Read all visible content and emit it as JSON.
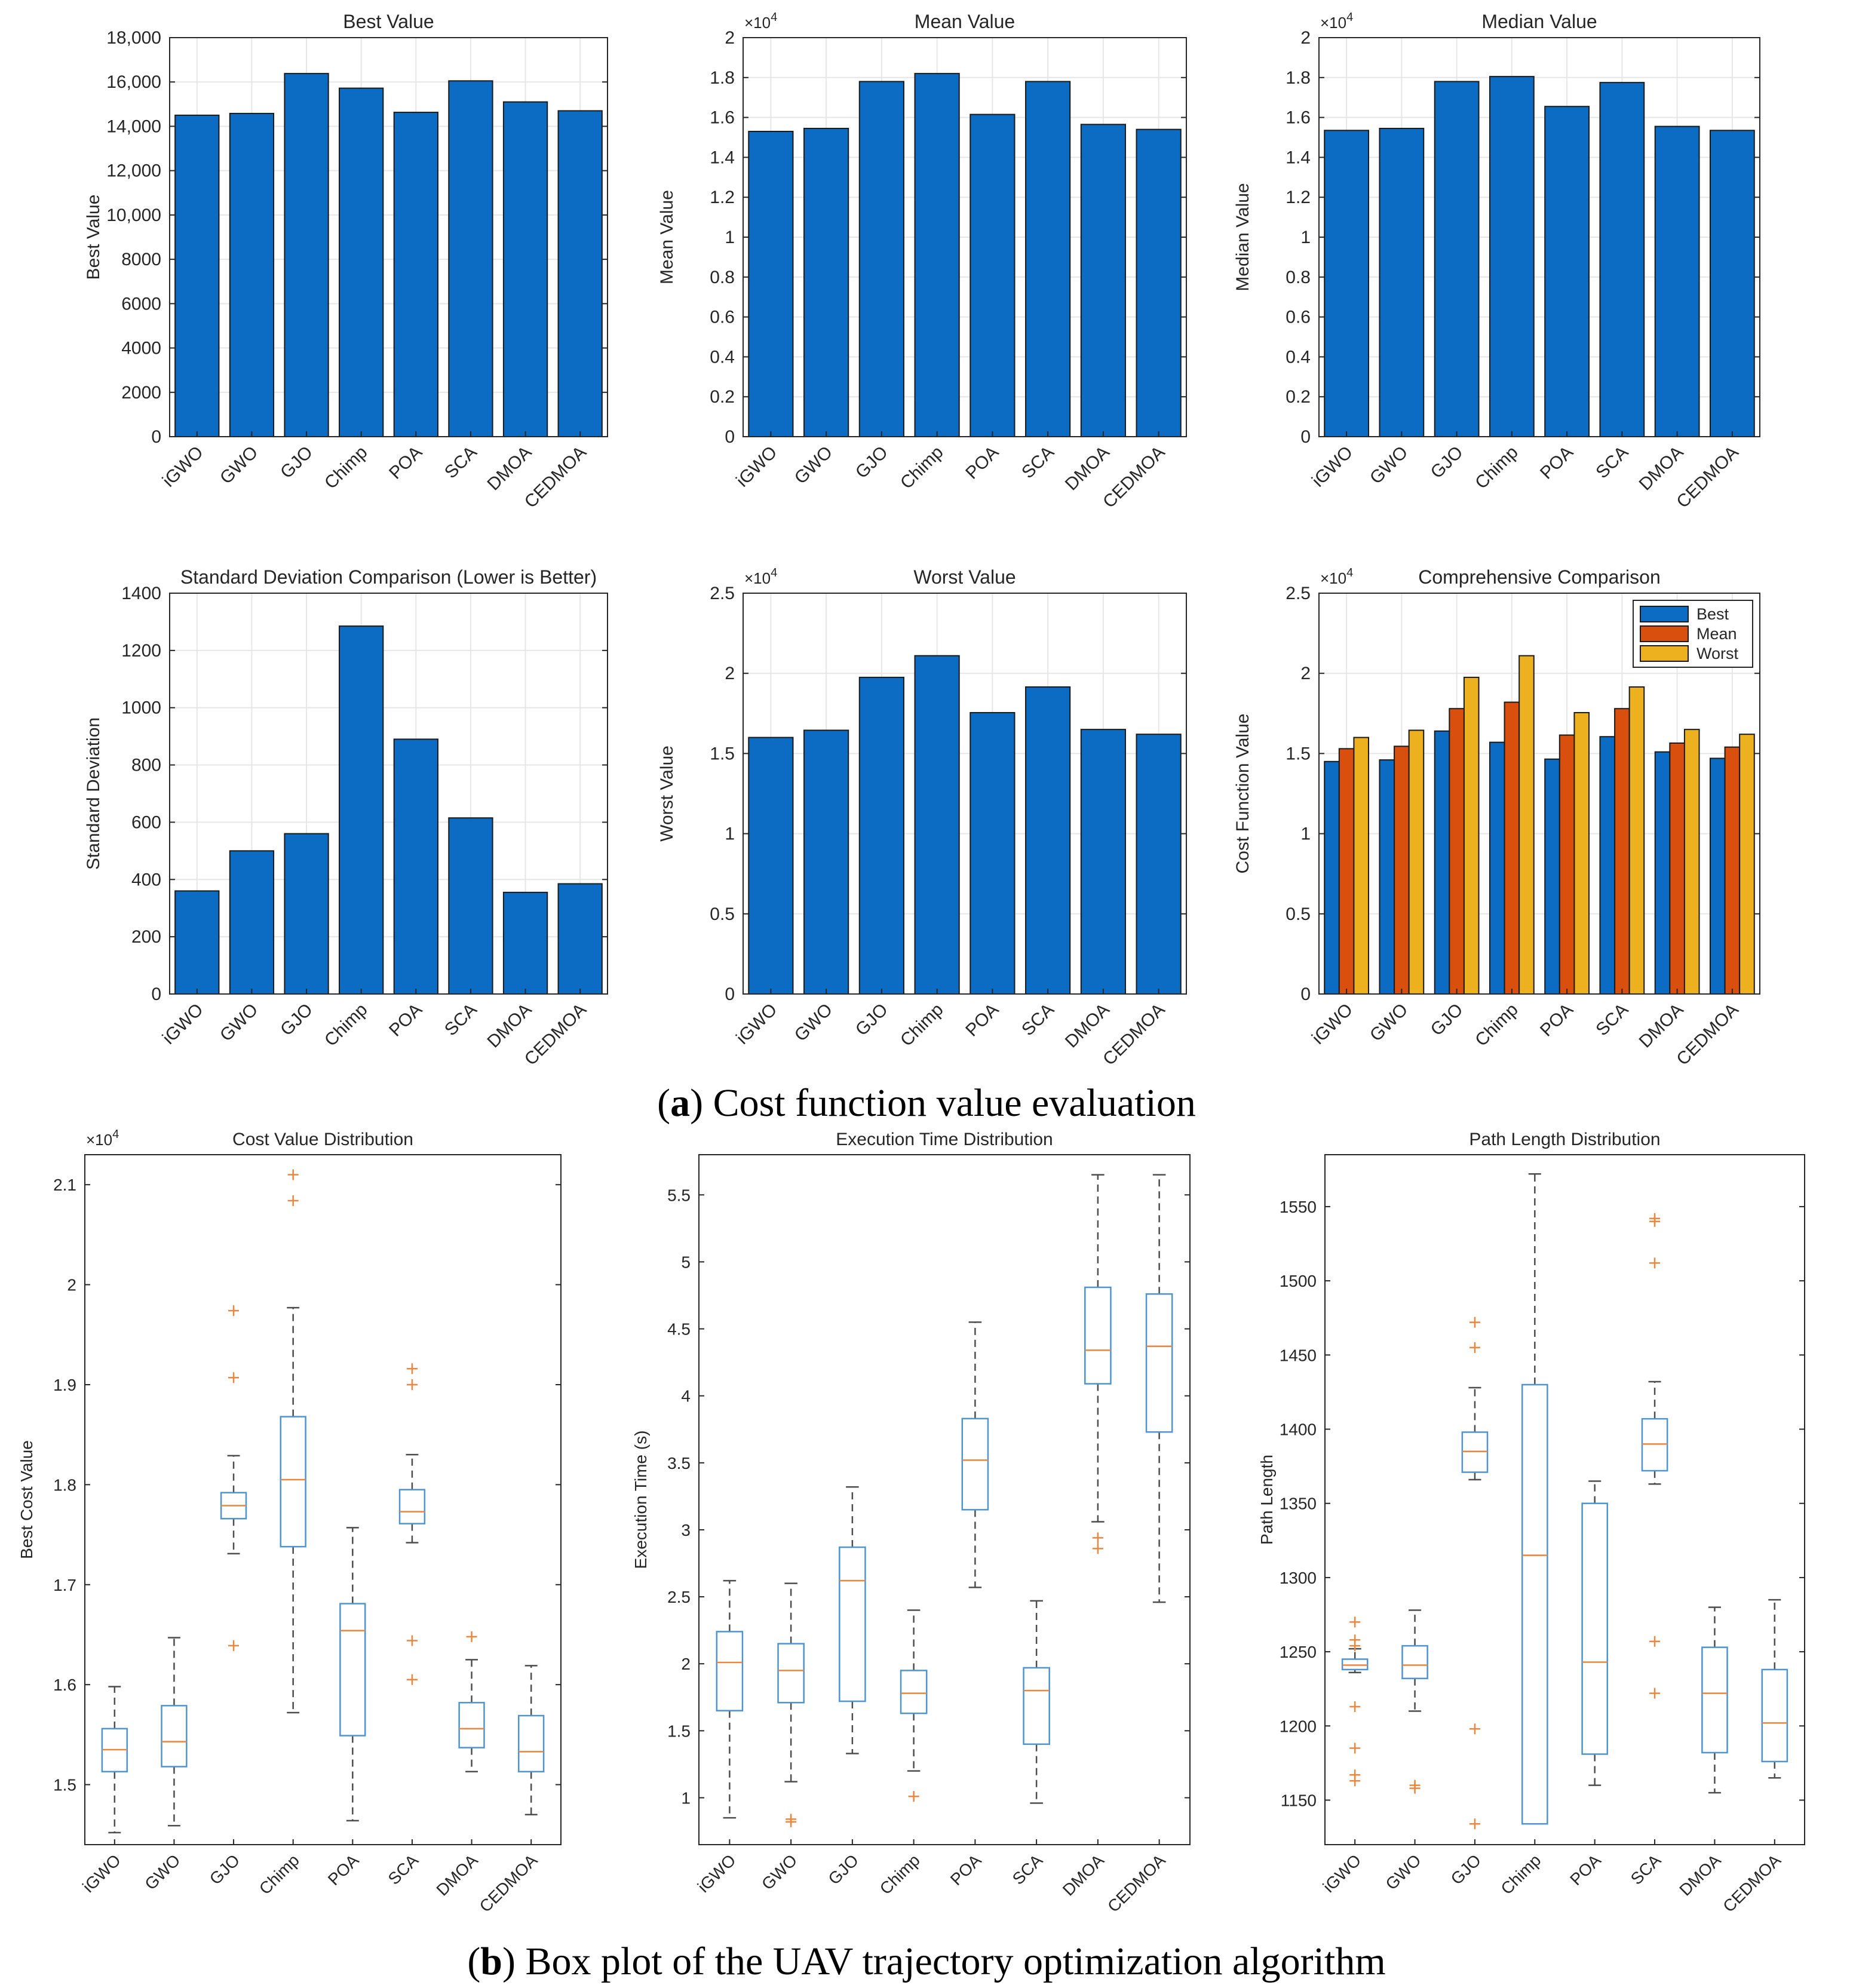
{
  "captions": {
    "a_label": "a",
    "a_text": "Cost function value evaluation",
    "b_label": "b",
    "b_text": "Box plot of the UAV trajectory optimization algorithm"
  },
  "colors": {
    "bar_blue": "#0C6CC3",
    "bar_orange": "#D94F0E",
    "bar_yellow": "#EDB120",
    "box_blue": "#4E94CE",
    "median_orange": "#E9863F",
    "outlier_orange": "#E9863F",
    "whisker_gray": "#4D4D4D",
    "grid": "#E6E6E6"
  },
  "chart_data": [
    {
      "id": "best-value",
      "type": "bar",
      "title": "Best Value",
      "xlabel": "",
      "ylabel": "Best Value",
      "categories": [
        "iGWO",
        "GWO",
        "GJO",
        "Chimp",
        "POA",
        "SCA",
        "DMOA",
        "CEDMOA"
      ],
      "values": [
        14500,
        14580,
        16380,
        15720,
        14630,
        16050,
        15100,
        14700
      ],
      "ylim": [
        0,
        18000
      ],
      "yticks": [
        0,
        2000,
        4000,
        6000,
        8000,
        10000,
        12000,
        14000,
        16000,
        18000
      ],
      "ytick_labels": [
        "0",
        "2000",
        "4000",
        "6000",
        "8000",
        "10,000",
        "12,000",
        "14,000",
        "16,000",
        "18,000"
      ],
      "exponent": "",
      "grid": true
    },
    {
      "id": "mean-value",
      "type": "bar",
      "title": "Mean Value",
      "xlabel": "",
      "ylabel": "Mean Value",
      "categories": [
        "iGWO",
        "GWO",
        "GJO",
        "Chimp",
        "POA",
        "SCA",
        "DMOA",
        "CEDMOA"
      ],
      "values": [
        1.53,
        1.545,
        1.78,
        1.82,
        1.615,
        1.78,
        1.565,
        1.54
      ],
      "ylim": [
        0,
        2
      ],
      "yticks": [
        0,
        0.2,
        0.4,
        0.6,
        0.8,
        1,
        1.2,
        1.4,
        1.6,
        1.8,
        2
      ],
      "ytick_labels": [
        "0",
        "0.2",
        "0.4",
        "0.6",
        "0.8",
        "1",
        "1.2",
        "1.4",
        "1.6",
        "1.8",
        "2"
      ],
      "exponent": "×10",
      "exponent_power": "4",
      "grid": true
    },
    {
      "id": "median-value",
      "type": "bar",
      "title": "Median Value",
      "xlabel": "",
      "ylabel": "Median Value",
      "categories": [
        "iGWO",
        "GWO",
        "GJO",
        "Chimp",
        "POA",
        "SCA",
        "DMOA",
        "CEDMOA"
      ],
      "values": [
        1.535,
        1.545,
        1.78,
        1.805,
        1.655,
        1.775,
        1.555,
        1.535
      ],
      "ylim": [
        0,
        2
      ],
      "yticks": [
        0,
        0.2,
        0.4,
        0.6,
        0.8,
        1,
        1.2,
        1.4,
        1.6,
        1.8,
        2
      ],
      "ytick_labels": [
        "0",
        "0.2",
        "0.4",
        "0.6",
        "0.8",
        "1",
        "1.2",
        "1.4",
        "1.6",
        "1.8",
        "2"
      ],
      "exponent": "×10",
      "exponent_power": "4",
      "grid": true
    },
    {
      "id": "std-dev",
      "type": "bar",
      "title": "Standard Deviation Comparison (Lower is Better)",
      "xlabel": "",
      "ylabel": "Standard Deviation",
      "categories": [
        "iGWO",
        "GWO",
        "GJO",
        "Chimp",
        "POA",
        "SCA",
        "DMOA",
        "CEDMOA"
      ],
      "values": [
        360,
        500,
        560,
        1285,
        890,
        615,
        355,
        385
      ],
      "ylim": [
        0,
        1400
      ],
      "yticks": [
        0,
        200,
        400,
        600,
        800,
        1000,
        1200,
        1400
      ],
      "ytick_labels": [
        "0",
        "200",
        "400",
        "600",
        "800",
        "1000",
        "1200",
        "1400"
      ],
      "exponent": "",
      "grid": true
    },
    {
      "id": "worst-value",
      "type": "bar",
      "title": "Worst Value",
      "xlabel": "",
      "ylabel": "Worst Value",
      "categories": [
        "iGWO",
        "GWO",
        "GJO",
        "Chimp",
        "POA",
        "SCA",
        "DMOA",
        "CEDMOA"
      ],
      "values": [
        1.6,
        1.645,
        1.975,
        2.11,
        1.755,
        1.915,
        1.65,
        1.62
      ],
      "ylim": [
        0,
        2.5
      ],
      "yticks": [
        0,
        0.5,
        1,
        1.5,
        2,
        2.5
      ],
      "ytick_labels": [
        "0",
        "0.5",
        "1",
        "1.5",
        "2",
        "2.5"
      ],
      "exponent": "×10",
      "exponent_power": "4",
      "grid": true
    },
    {
      "id": "comprehensive",
      "type": "bar",
      "title": "Comprehensive Comparison",
      "xlabel": "",
      "ylabel": "Cost Function Value",
      "categories": [
        "iGWO",
        "GWO",
        "GJO",
        "Chimp",
        "POA",
        "SCA",
        "DMOA",
        "CEDMOA"
      ],
      "series": [
        {
          "name": "Best",
          "values": [
            1.45,
            1.46,
            1.64,
            1.57,
            1.465,
            1.605,
            1.51,
            1.47
          ]
        },
        {
          "name": "Mean",
          "values": [
            1.53,
            1.545,
            1.78,
            1.82,
            1.615,
            1.78,
            1.565,
            1.54
          ]
        },
        {
          "name": "Worst",
          "values": [
            1.6,
            1.645,
            1.975,
            2.11,
            1.755,
            1.915,
            1.65,
            1.62
          ]
        }
      ],
      "ylim": [
        0,
        2.5
      ],
      "yticks": [
        0,
        0.5,
        1,
        1.5,
        2,
        2.5
      ],
      "ytick_labels": [
        "0",
        "0.5",
        "1",
        "1.5",
        "2",
        "2.5"
      ],
      "exponent": "×10",
      "exponent_power": "4",
      "legend": "top-right",
      "grid": true
    },
    {
      "id": "cost-distribution",
      "type": "box",
      "title": "Cost Value Distribution",
      "xlabel": "",
      "ylabel": "Best Cost Value",
      "categories": [
        "iGWO",
        "GWO",
        "GJO",
        "Chimp",
        "POA",
        "SCA",
        "DMOA",
        "CEDMOA"
      ],
      "boxes": [
        {
          "min": 1.452,
          "q1": 1.513,
          "median": 1.535,
          "q3": 1.556,
          "max": 1.598,
          "outliers": []
        },
        {
          "min": 1.459,
          "q1": 1.518,
          "median": 1.543,
          "q3": 1.579,
          "max": 1.647,
          "outliers": []
        },
        {
          "min": 1.731,
          "q1": 1.766,
          "median": 1.779,
          "q3": 1.792,
          "max": 1.829,
          "outliers": [
            1.974,
            1.907,
            1.639
          ]
        },
        {
          "min": 1.572,
          "q1": 1.738,
          "median": 1.805,
          "q3": 1.868,
          "max": 1.977,
          "outliers": [
            2.11,
            2.084
          ]
        },
        {
          "min": 1.464,
          "q1": 1.549,
          "median": 1.654,
          "q3": 1.681,
          "max": 1.757,
          "outliers": []
        },
        {
          "min": 1.742,
          "q1": 1.761,
          "median": 1.773,
          "q3": 1.795,
          "max": 1.83,
          "outliers": [
            1.916,
            1.9,
            1.644,
            1.605
          ]
        },
        {
          "min": 1.513,
          "q1": 1.537,
          "median": 1.556,
          "q3": 1.582,
          "max": 1.625,
          "outliers": [
            1.648
          ]
        },
        {
          "min": 1.47,
          "q1": 1.513,
          "median": 1.533,
          "q3": 1.569,
          "max": 1.619,
          "outliers": []
        }
      ],
      "ylim": [
        1.44,
        2.13
      ],
      "yticks": [
        1.5,
        1.6,
        1.7,
        1.8,
        1.9,
        2,
        2.1
      ],
      "ytick_labels": [
        "1.5",
        "1.6",
        "1.7",
        "1.8",
        "1.9",
        "2",
        "2.1"
      ],
      "exponent": "×10",
      "exponent_power": "4",
      "grid": false
    },
    {
      "id": "time-distribution",
      "type": "box",
      "title": "Execution Time Distribution",
      "xlabel": "",
      "ylabel": "Execution Time (s)",
      "categories": [
        "iGWO",
        "GWO",
        "GJO",
        "Chimp",
        "POA",
        "SCA",
        "DMOA",
        "CEDMOA"
      ],
      "boxes": [
        {
          "min": 0.85,
          "q1": 1.65,
          "median": 2.01,
          "q3": 2.24,
          "max": 2.62,
          "outliers": []
        },
        {
          "min": 1.12,
          "q1": 1.71,
          "median": 1.95,
          "q3": 2.15,
          "max": 2.6,
          "outliers": [
            0.84,
            0.82
          ]
        },
        {
          "min": 1.33,
          "q1": 1.72,
          "median": 2.62,
          "q3": 2.87,
          "max": 3.32,
          "outliers": []
        },
        {
          "min": 1.2,
          "q1": 1.63,
          "median": 1.78,
          "q3": 1.95,
          "max": 2.4,
          "outliers": [
            1.01
          ]
        },
        {
          "min": 2.57,
          "q1": 3.15,
          "median": 3.52,
          "q3": 3.83,
          "max": 4.55,
          "outliers": []
        },
        {
          "min": 0.96,
          "q1": 1.4,
          "median": 1.8,
          "q3": 1.97,
          "max": 2.47,
          "outliers": []
        },
        {
          "min": 3.06,
          "q1": 4.09,
          "median": 4.34,
          "q3": 4.81,
          "max": 5.65,
          "outliers": [
            2.94,
            2.86
          ]
        },
        {
          "min": 2.46,
          "q1": 3.73,
          "median": 4.37,
          "q3": 4.76,
          "max": 5.65,
          "outliers": []
        }
      ],
      "ylim": [
        0.65,
        5.8
      ],
      "yticks": [
        1,
        1.5,
        2,
        2.5,
        3,
        3.5,
        4,
        4.5,
        5,
        5.5
      ],
      "ytick_labels": [
        "1",
        "1.5",
        "2",
        "2.5",
        "3",
        "3.5",
        "4",
        "4.5",
        "5",
        "5.5"
      ],
      "exponent": "",
      "grid": false
    },
    {
      "id": "path-distribution",
      "type": "box",
      "title": "Path Length Distribution",
      "xlabel": "",
      "ylabel": "Path Length",
      "categories": [
        "iGWO",
        "GWO",
        "GJO",
        "Chimp",
        "POA",
        "SCA",
        "DMOA",
        "CEDMOA"
      ],
      "boxes": [
        {
          "min": 1236,
          "q1": 1238,
          "median": 1241,
          "q3": 1245,
          "max": 1252,
          "outliers": [
            1270,
            1258,
            1254,
            1213,
            1185,
            1167,
            1163
          ]
        },
        {
          "min": 1210,
          "q1": 1232,
          "median": 1241,
          "q3": 1254,
          "max": 1278,
          "outliers": [
            1160,
            1158
          ]
        },
        {
          "min": 1366,
          "q1": 1371,
          "median": 1385,
          "q3": 1398,
          "max": 1428,
          "outliers": [
            1472,
            1455,
            1198,
            1134
          ]
        },
        {
          "min": 1134,
          "q1": 1134,
          "median": 1315,
          "q3": 1430,
          "max": 1572,
          "outliers": []
        },
        {
          "min": 1160,
          "q1": 1181,
          "median": 1243,
          "q3": 1350,
          "max": 1365,
          "outliers": []
        },
        {
          "min": 1363,
          "q1": 1372,
          "median": 1390,
          "q3": 1407,
          "max": 1432,
          "outliers": [
            1542,
            1540,
            1512,
            1257,
            1222
          ]
        },
        {
          "min": 1155,
          "q1": 1182,
          "median": 1222,
          "q3": 1253,
          "max": 1280,
          "outliers": []
        },
        {
          "min": 1165,
          "q1": 1176,
          "median": 1202,
          "q3": 1238,
          "max": 1285,
          "outliers": []
        }
      ],
      "ylim": [
        1120,
        1585
      ],
      "yticks": [
        1150,
        1200,
        1250,
        1300,
        1350,
        1400,
        1450,
        1500,
        1550
      ],
      "ytick_labels": [
        "1150",
        "1200",
        "1250",
        "1300",
        "1350",
        "1400",
        "1450",
        "1500",
        "1550"
      ],
      "exponent": "",
      "grid": false
    }
  ]
}
